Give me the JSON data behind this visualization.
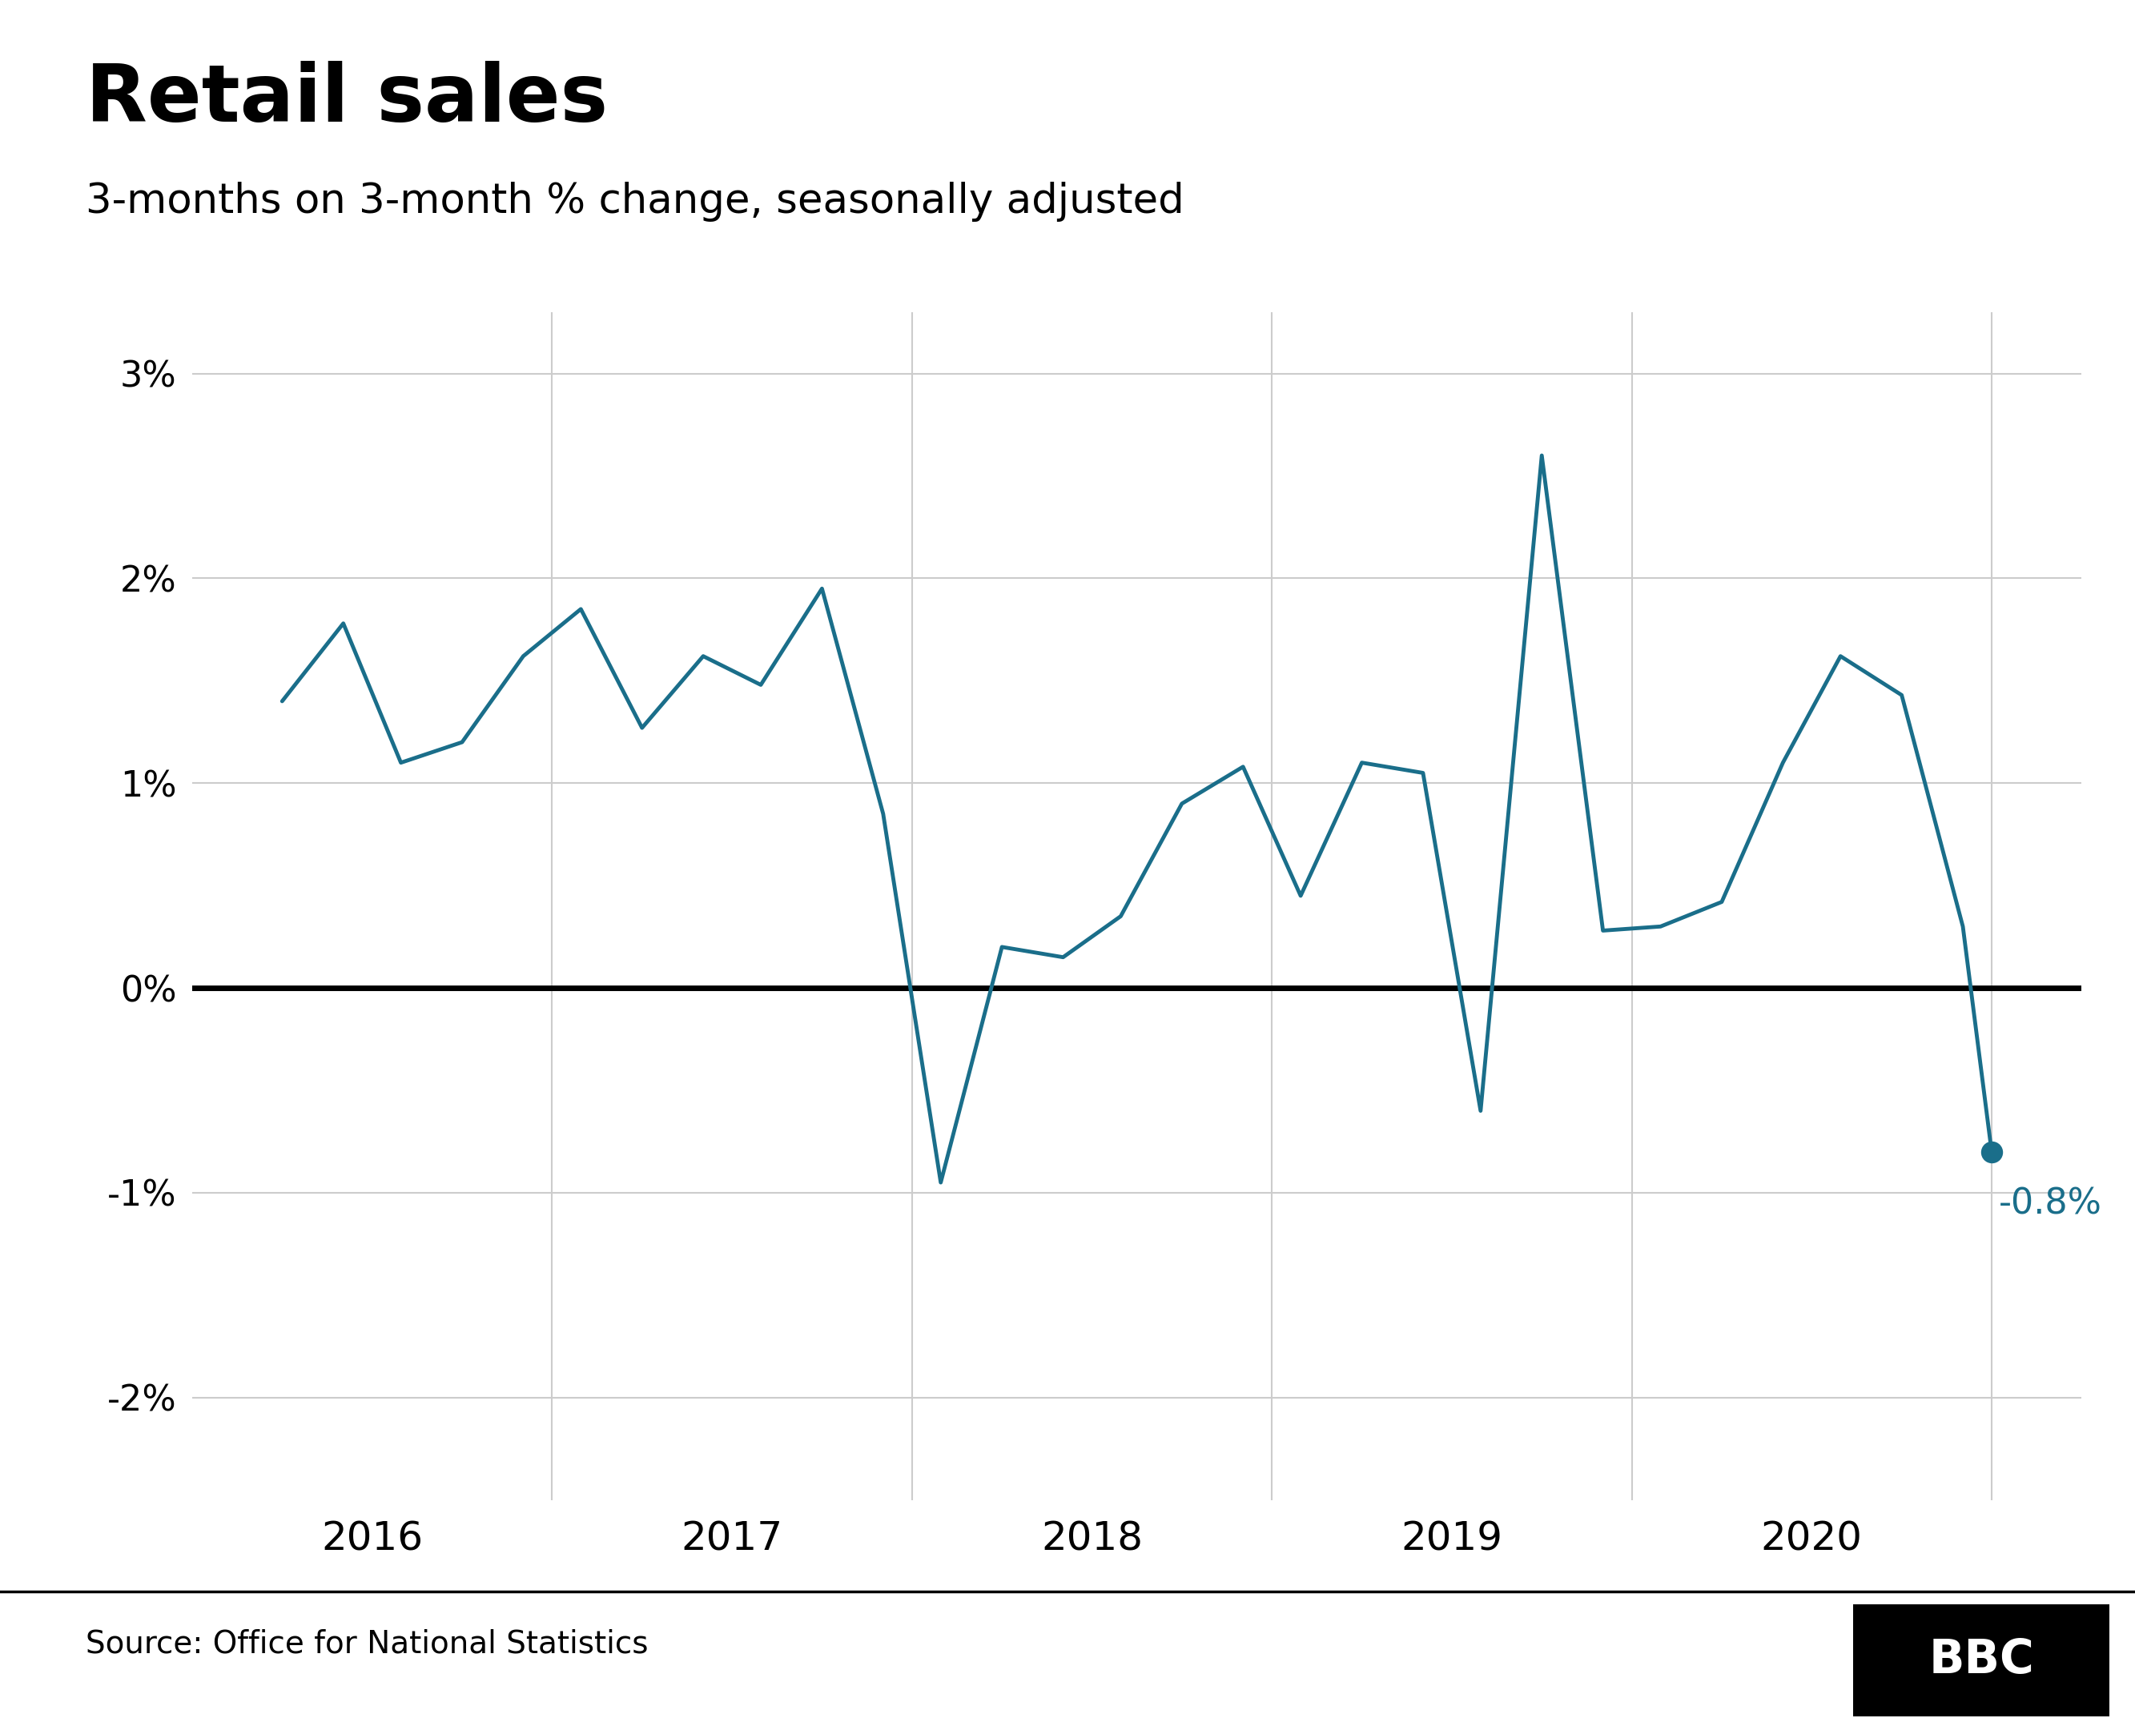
{
  "title": "Retail sales",
  "subtitle": "3-months on 3-month % change, seasonally adjusted",
  "source": "Source: Office for National Statistics",
  "line_color": "#1a6e8a",
  "zero_line_color": "#000000",
  "annotation_color": "#1a6e8a",
  "last_label": "-0.8%",
  "background_color": "#ffffff",
  "ylim": [
    -2.5,
    3.3
  ],
  "yticks": [
    -2,
    -1,
    0,
    1,
    2,
    3
  ],
  "x_data": [
    2015.25,
    2015.42,
    2015.58,
    2015.75,
    2015.92,
    2016.08,
    2016.25,
    2016.42,
    2016.58,
    2016.75,
    2016.92,
    2017.08,
    2017.25,
    2017.42,
    2017.58,
    2017.75,
    2017.92,
    2018.08,
    2018.25,
    2018.42,
    2018.58,
    2018.75,
    2018.92,
    2019.08,
    2019.25,
    2019.42,
    2019.58,
    2019.75,
    2019.92,
    2020.0
  ],
  "y_data": [
    1.4,
    1.78,
    1.1,
    1.2,
    1.62,
    1.85,
    1.27,
    1.62,
    1.48,
    1.95,
    0.85,
    -0.95,
    0.2,
    0.15,
    0.35,
    0.9,
    1.08,
    0.45,
    1.1,
    1.05,
    -0.6,
    2.6,
    0.28,
    0.3,
    0.42,
    1.1,
    1.62,
    1.43,
    0.3,
    -0.8
  ],
  "xtick_positions": [
    2015.5,
    2016.5,
    2017.5,
    2018.5,
    2019.5
  ],
  "xtick_labels": [
    "2016",
    "2017",
    "2018",
    "2019",
    "2020"
  ],
  "xlim": [
    2015.0,
    2020.25
  ]
}
